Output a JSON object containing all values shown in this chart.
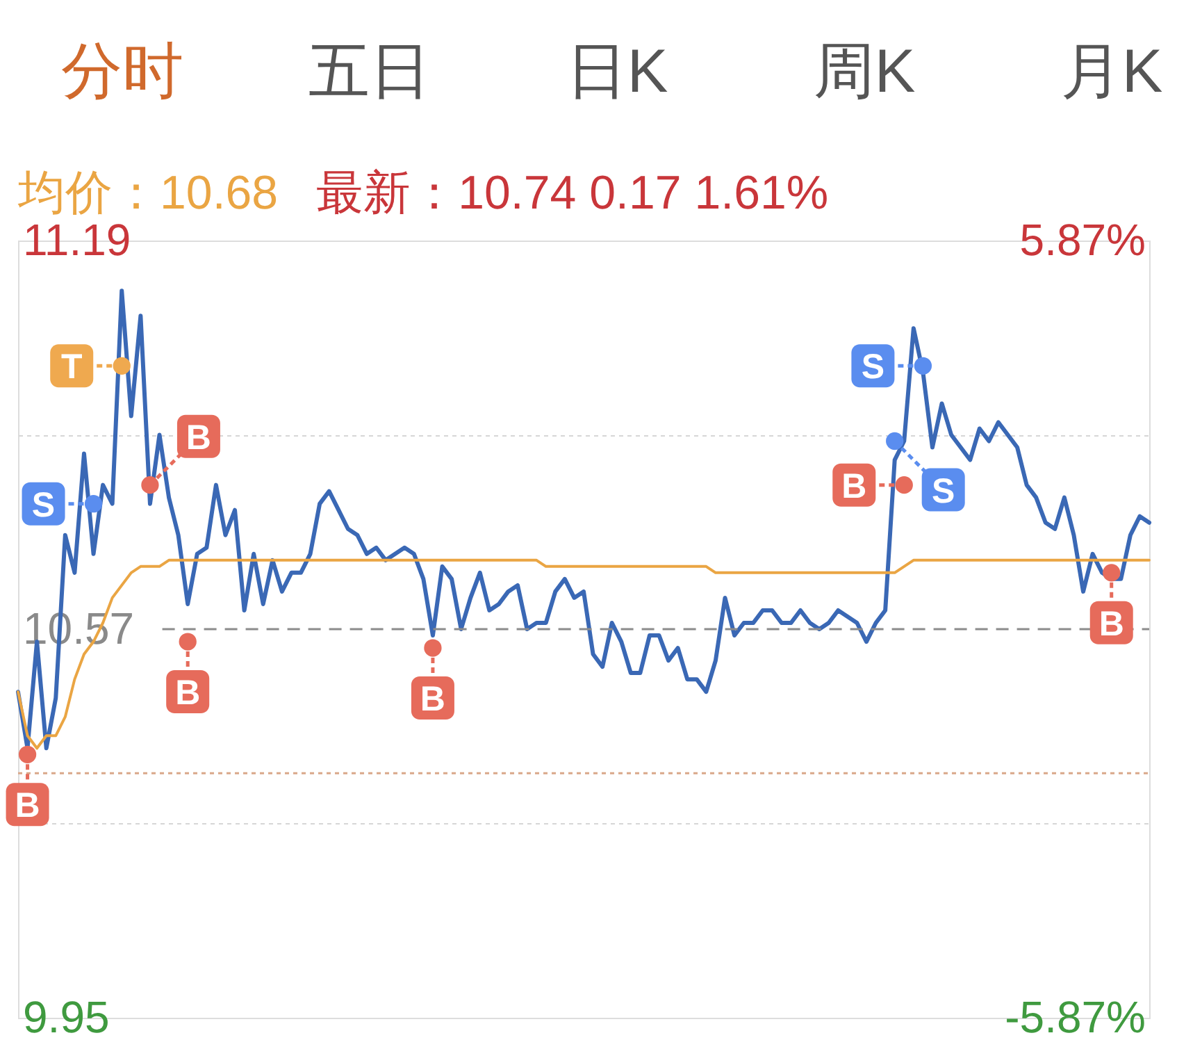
{
  "chart_data": {
    "type": "line",
    "title": "分时",
    "subtitle": "最新：10.74 0.17 1.61%",
    "tick_labels": "y",
    "grid": "y",
    "categories": [
      null,
      null,
      null,
      null,
      null,
      null,
      null,
      null,
      null,
      null,
      null,
      null,
      null,
      null,
      null,
      null,
      null,
      null,
      null,
      null,
      null,
      null,
      null,
      null,
      null,
      null,
      null,
      null,
      null,
      null,
      null,
      null,
      null,
      null,
      null,
      null,
      null,
      null,
      null,
      null,
      null,
      null,
      null,
      null,
      null,
      null,
      null,
      null,
      null,
      null,
      null,
      null,
      null,
      null,
      null,
      null,
      null,
      null,
      null,
      null,
      null,
      null,
      null,
      null,
      null,
      null,
      null,
      null,
      null,
      null,
      null,
      null,
      null,
      null,
      null,
      null,
      null,
      null,
      null,
      null,
      null,
      null,
      null,
      null,
      null,
      null,
      null,
      null,
      null,
      null,
      null,
      null,
      null,
      null,
      null,
      null,
      null,
      null,
      null,
      null,
      null,
      null,
      null,
      null,
      null,
      null,
      null,
      null,
      null,
      null,
      null,
      null,
      null,
      null,
      null,
      null,
      null,
      null,
      null,
      null,
      null
    ],
    "ylim": [
      9.95,
      11.19
    ],
    "yticks": [
      9.95,
      {
        "value": 10.26,
        "label": null
      },
      10.57,
      {
        "value": 10.88,
        "label": null
      },
      11.19
    ],
    "y2lim": [
      -5.87,
      5.87
    ],
    "y2ticks": [
      {
        "value": -5.87,
        "label": "-5.87%"
      },
      {
        "value": 5.87,
        "label": "5.87%"
      }
    ],
    "ref_lines": [
      {
        "axis": "y",
        "value": 10.57,
        "color": "#8c8c8c",
        "line_style": "dashed"
      },
      {
        "axis": "y",
        "value": 10.34,
        "color": "#d9a88a",
        "line_style": "dotted"
      }
    ],
    "series": [
      {
        "color": "#3a68b5",
        "values": [
          10.47,
          10.38,
          10.55,
          10.38,
          10.46,
          10.72,
          10.66,
          10.85,
          10.69,
          10.8,
          10.77,
          11.11,
          10.91,
          11.07,
          10.77,
          10.88,
          10.78,
          10.72,
          10.61,
          10.69,
          10.7,
          10.8,
          10.72,
          10.76,
          10.6,
          10.69,
          10.61,
          10.68,
          10.63,
          10.66,
          10.66,
          10.69,
          10.77,
          10.79,
          10.76,
          10.73,
          10.72,
          10.69,
          10.7,
          10.68,
          10.69,
          10.7,
          10.69,
          10.65,
          10.56,
          10.67,
          10.65,
          10.57,
          10.62,
          10.66,
          10.6,
          10.61,
          10.63,
          10.64,
          10.57,
          10.58,
          10.58,
          10.63,
          10.65,
          10.62,
          10.63,
          10.53,
          10.51,
          10.58,
          10.55,
          10.5,
          10.5,
          10.56,
          10.56,
          10.52,
          10.54,
          10.49,
          10.49,
          10.47,
          10.52,
          10.62,
          10.56,
          10.58,
          10.58,
          10.6,
          10.6,
          10.58,
          10.58,
          10.6,
          10.58,
          10.57,
          10.58,
          10.6,
          10.59,
          10.58,
          10.55,
          10.58,
          10.6,
          10.84,
          10.87,
          11.05,
          10.98,
          10.86,
          10.93,
          10.88,
          10.86,
          10.84,
          10.89,
          10.87,
          10.9,
          10.88,
          10.86,
          10.8,
          10.78,
          10.74,
          10.73,
          10.78,
          10.72,
          10.63,
          10.69,
          10.66,
          10.65,
          10.65,
          10.72,
          10.75,
          10.74
        ]
      },
      {
        "name": "均价：10.68",
        "color": "#eaa543",
        "values": [
          10.47,
          10.4,
          10.38,
          10.4,
          10.4,
          10.43,
          10.49,
          10.53,
          10.55,
          10.58,
          10.62,
          10.64,
          10.66,
          10.67,
          10.67,
          10.67,
          10.68,
          10.68,
          10.68,
          10.68,
          10.68,
          10.68,
          10.68,
          10.68,
          10.68,
          10.68,
          10.68,
          10.68,
          10.68,
          10.68,
          10.68,
          10.68,
          10.68,
          10.68,
          10.68,
          10.68,
          10.68,
          10.68,
          10.68,
          10.68,
          10.68,
          10.68,
          10.68,
          10.68,
          10.68,
          10.68,
          10.68,
          10.68,
          10.68,
          10.68,
          10.68,
          10.68,
          10.68,
          10.68,
          10.68,
          10.68,
          10.67,
          10.67,
          10.67,
          10.67,
          10.67,
          10.67,
          10.67,
          10.67,
          10.67,
          10.67,
          10.67,
          10.67,
          10.67,
          10.67,
          10.67,
          10.67,
          10.67,
          10.67,
          10.66,
          10.66,
          10.66,
          10.66,
          10.66,
          10.66,
          10.66,
          10.66,
          10.66,
          10.66,
          10.66,
          10.66,
          10.66,
          10.66,
          10.66,
          10.66,
          10.66,
          10.66,
          10.66,
          10.66,
          10.67,
          10.68,
          10.68,
          10.68,
          10.68,
          10.68,
          10.68,
          10.68,
          10.68,
          10.68,
          10.68,
          10.68,
          10.68,
          10.68,
          10.68,
          10.68,
          10.68,
          10.68,
          10.68,
          10.68,
          10.68,
          10.68,
          10.68,
          10.68,
          10.68,
          10.68,
          10.68
        ]
      },
      {
        "type": "scatter",
        "color": "#e66b5b",
        "marker": "circle",
        "values": [
          null,
          10.37,
          null,
          null,
          null,
          null,
          null,
          null,
          null,
          null,
          null,
          null,
          null,
          null,
          10.8,
          null,
          null,
          null,
          10.55,
          null,
          null,
          null,
          null,
          null,
          null,
          null,
          null,
          null,
          null,
          null,
          null,
          null,
          null,
          null,
          null,
          null,
          null,
          null,
          null,
          null,
          null,
          null,
          null,
          null,
          10.54,
          null,
          null,
          null,
          null,
          null,
          null,
          null,
          null,
          null,
          null,
          null,
          null,
          null,
          null,
          null,
          null,
          null,
          null,
          null,
          null,
          null,
          null,
          null,
          null,
          null,
          null,
          null,
          null,
          null,
          null,
          null,
          null,
          null,
          null,
          null,
          null,
          null,
          null,
          null,
          null,
          null,
          null,
          null,
          null,
          null,
          null,
          null,
          null,
          null,
          10.8,
          null,
          null,
          null,
          null,
          null,
          null,
          null,
          null,
          null,
          null,
          null,
          null,
          null,
          null,
          null,
          null,
          null,
          null,
          null,
          null,
          null,
          10.66,
          null,
          null,
          null,
          null
        ],
        "value_labels": [
          null,
          "B",
          null,
          null,
          null,
          null,
          null,
          null,
          null,
          null,
          null,
          null,
          null,
          null,
          "B",
          null,
          null,
          null,
          "B",
          null,
          null,
          null,
          null,
          null,
          null,
          null,
          null,
          null,
          null,
          null,
          null,
          null,
          null,
          null,
          null,
          null,
          null,
          null,
          null,
          null,
          null,
          null,
          null,
          null,
          "B",
          null,
          null,
          null,
          null,
          null,
          null,
          null,
          null,
          null,
          null,
          null,
          null,
          null,
          null,
          null,
          null,
          null,
          null,
          null,
          null,
          null,
          null,
          null,
          null,
          null,
          null,
          null,
          null,
          null,
          null,
          null,
          null,
          null,
          null,
          null,
          null,
          null,
          null,
          null,
          null,
          null,
          null,
          null,
          null,
          null,
          null,
          null,
          null,
          null,
          "B",
          null,
          null,
          null,
          null,
          null,
          null,
          null,
          null,
          null,
          null,
          null,
          null,
          null,
          null,
          null,
          null,
          null,
          null,
          null,
          null,
          null,
          "B",
          null,
          null,
          null,
          null
        ]
      },
      {
        "type": "scatter",
        "color": "#5a8def",
        "marker": "circle",
        "values": [
          null,
          null,
          null,
          null,
          null,
          null,
          null,
          null,
          10.77,
          null,
          null,
          null,
          null,
          null,
          null,
          null,
          null,
          null,
          null,
          null,
          null,
          null,
          null,
          null,
          null,
          null,
          null,
          null,
          null,
          null,
          null,
          null,
          null,
          null,
          null,
          null,
          null,
          null,
          null,
          null,
          null,
          null,
          null,
          null,
          null,
          null,
          null,
          null,
          null,
          null,
          null,
          null,
          null,
          null,
          null,
          null,
          null,
          null,
          null,
          null,
          null,
          null,
          null,
          null,
          null,
          null,
          null,
          null,
          null,
          null,
          null,
          null,
          null,
          null,
          null,
          null,
          null,
          null,
          null,
          null,
          null,
          null,
          null,
          null,
          null,
          null,
          null,
          null,
          null,
          null,
          null,
          null,
          null,
          10.87,
          null,
          null,
          10.99,
          null,
          null,
          null,
          null,
          null,
          null,
          null,
          null,
          null,
          null,
          null,
          null,
          null,
          null,
          null,
          null,
          null,
          null,
          null,
          null,
          null,
          null,
          null,
          null
        ],
        "value_labels": [
          null,
          null,
          null,
          null,
          null,
          null,
          null,
          null,
          "S",
          null,
          null,
          null,
          null,
          null,
          null,
          null,
          null,
          null,
          null,
          null,
          null,
          null,
          null,
          null,
          null,
          null,
          null,
          null,
          null,
          null,
          null,
          null,
          null,
          null,
          null,
          null,
          null,
          null,
          null,
          null,
          null,
          null,
          null,
          null,
          null,
          null,
          null,
          null,
          null,
          null,
          null,
          null,
          null,
          null,
          null,
          null,
          null,
          null,
          null,
          null,
          null,
          null,
          null,
          null,
          null,
          null,
          null,
          null,
          null,
          null,
          null,
          null,
          null,
          null,
          null,
          null,
          null,
          null,
          null,
          null,
          null,
          null,
          null,
          null,
          null,
          null,
          null,
          null,
          null,
          null,
          null,
          null,
          null,
          "S",
          null,
          null,
          "S",
          null,
          null,
          null,
          null,
          null,
          null,
          null,
          null,
          null,
          null,
          null,
          null,
          null,
          null,
          null,
          null,
          null,
          null,
          null,
          null,
          null,
          null,
          null,
          null
        ]
      },
      {
        "type": "scatter",
        "color": "#efa94f",
        "marker": "circle",
        "values": [
          null,
          null,
          null,
          null,
          null,
          null,
          null,
          null,
          null,
          null,
          null,
          10.99,
          null,
          null,
          null,
          null,
          null,
          null,
          null,
          null,
          null,
          null,
          null,
          null,
          null,
          null,
          null,
          null,
          null,
          null,
          null,
          null,
          null,
          null,
          null,
          null,
          null,
          null,
          null,
          null,
          null,
          null,
          null,
          null,
          null,
          null,
          null,
          null,
          null,
          null,
          null,
          null,
          null,
          null,
          null,
          null,
          null,
          null,
          null,
          null,
          null,
          null,
          null,
          null,
          null,
          null,
          null,
          null,
          null,
          null,
          null,
          null,
          null,
          null,
          null,
          null,
          null,
          null,
          null,
          null,
          null,
          null,
          null,
          null,
          null,
          null,
          null,
          null,
          null,
          null,
          null,
          null,
          null,
          null,
          null,
          null,
          null,
          null,
          null,
          null,
          null,
          null,
          null,
          null,
          null,
          null,
          null,
          null,
          null,
          null,
          null,
          null,
          null,
          null,
          null,
          null,
          null,
          null,
          null,
          null,
          null
        ],
        "value_labels": [
          null,
          null,
          null,
          null,
          null,
          null,
          null,
          null,
          null,
          null,
          null,
          "T",
          null,
          null,
          null,
          null,
          null,
          null,
          null,
          null,
          null,
          null,
          null,
          null,
          null,
          null,
          null,
          null,
          null,
          null,
          null,
          null,
          null,
          null,
          null,
          null,
          null,
          null,
          null,
          null,
          null,
          null,
          null,
          null,
          null,
          null,
          null,
          null,
          null,
          null,
          null,
          null,
          null,
          null,
          null,
          null,
          null,
          null,
          null,
          null,
          null,
          null,
          null,
          null,
          null,
          null,
          null,
          null,
          null,
          null,
          null,
          null,
          null,
          null,
          null,
          null,
          null,
          null,
          null,
          null,
          null,
          null,
          null,
          null,
          null,
          null,
          null,
          null,
          null,
          null,
          null,
          null,
          null,
          null,
          null,
          null,
          null,
          null,
          null,
          null,
          null,
          null,
          null,
          null,
          null,
          null,
          null,
          null,
          null,
          null,
          null,
          null,
          null,
          null,
          null,
          null,
          null,
          null,
          null,
          null,
          null
        ]
      }
    ],
    "annotations": [
      "五日",
      "日K",
      "周K",
      "月K"
    ]
  }
}
